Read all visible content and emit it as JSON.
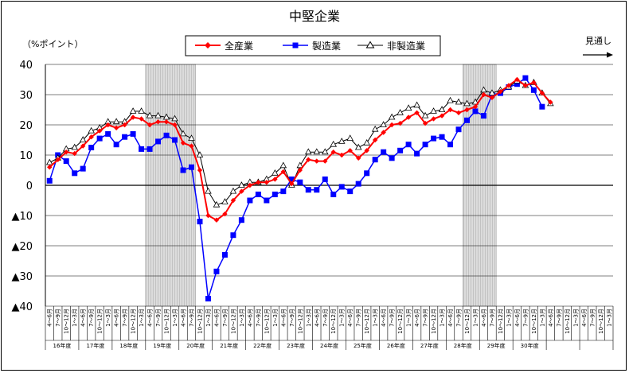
{
  "chart_data": {
    "type": "line",
    "title": "中堅企業",
    "ylabel": "（%ポイント）",
    "forecast_label": "見通し",
    "ylim": [
      -40,
      40
    ],
    "yticks": [
      "40",
      "30",
      "20",
      "10",
      "0",
      "▲10",
      "▲20",
      "▲30",
      "▲40"
    ],
    "grid": "horizontal",
    "legend_position": "top",
    "shaded_periods": [
      [
        24,
        35
      ],
      [
        100,
        107
      ]
    ],
    "x_labels": [
      "4～6月",
      "7～9月",
      "10～12月",
      "1～3月",
      "4～6月",
      "7～9月",
      "10～12月",
      "1～3月",
      "4～6月",
      "7～9月",
      "10～12月",
      "1～3月",
      "4～6月",
      "7～9月",
      "10～12月",
      "1～3月",
      "4～6月",
      "7～9月",
      "10～12月",
      "1～3月",
      "4～6月",
      "7～9月",
      "10～12月",
      "1～3月",
      "4～6月",
      "7～9月",
      "10～12月",
      "1～3月",
      "4～6月",
      "7～9月",
      "10～12月",
      "1～3月",
      "4～6月",
      "7～9月",
      "10～12月",
      "1～3月",
      "4～6月",
      "7～9月",
      "10～12月",
      "1～3月",
      "4～6月",
      "7～9月",
      "10～12月",
      "1～3月",
      "4～6月",
      "7～9月",
      "10～12月",
      "1～3月",
      "4～6月",
      "7～9月",
      "10～12月",
      "1～3月",
      "4～6月",
      "7～9月",
      "10～12月",
      "1～3月",
      "4～6月",
      "7～9月",
      "10～12月",
      "1～3月",
      "4～6月",
      "7～9月",
      "10～12月",
      "1～3月",
      "4～6月",
      "7～9月",
      "10～12月",
      "1～3月"
    ],
    "fiscal_years": [
      "16年度",
      "17年度",
      "18年度",
      "19年度",
      "20年度",
      "21年度",
      "22年度",
      "23年度",
      "24年度",
      "25年度",
      "26年度",
      "27年度",
      "28年度",
      "29年度",
      "30年度"
    ],
    "series": [
      {
        "name": "全産業",
        "color": "#ff0000",
        "marker": "diamond",
        "values": [
          6,
          8.5,
          11,
          10.5,
          13,
          16,
          18,
          20,
          19,
          20,
          22.5,
          22,
          20,
          21,
          21,
          20,
          14,
          13,
          5,
          -10,
          -11.5,
          -9.5,
          -5,
          -2,
          0,
          1,
          1,
          2,
          4.5,
          0.5,
          5,
          8.5,
          8,
          8,
          11,
          10,
          11.5,
          9,
          11.5,
          15,
          17.5,
          20,
          20.5,
          22.5,
          24,
          20.5,
          22,
          23,
          25,
          24,
          25,
          26,
          30,
          29,
          31,
          33,
          35,
          33,
          34,
          30.5,
          27.5
        ]
      },
      {
        "name": "製造業",
        "color": "#0000ff",
        "marker": "square",
        "values": [
          1.5,
          10,
          8,
          4,
          5.5,
          12.5,
          15.5,
          17,
          13.5,
          16,
          17,
          12,
          12,
          14.5,
          16.5,
          15,
          5,
          6,
          -12,
          -37.5,
          -28.5,
          -23,
          -16.5,
          -11.5,
          -5,
          -3,
          -5,
          -3,
          -2,
          2,
          1,
          -1.5,
          -1.5,
          2,
          -3,
          -0.5,
          -2,
          0.5,
          4,
          8.5,
          11,
          9,
          11.5,
          13.5,
          10.5,
          13.5,
          15.5,
          16,
          13.5,
          18.5,
          21.5,
          24.5,
          23,
          30,
          30.5,
          32.5,
          33.5,
          35.5,
          31.5,
          26
        ]
      },
      {
        "name": "非製造業",
        "color": "#000000",
        "marker": "triangle",
        "values": [
          7.5,
          9,
          12,
          12.5,
          15,
          18,
          19,
          21,
          21,
          21,
          24.5,
          24.5,
          23,
          23,
          22.5,
          22,
          17,
          15.5,
          10,
          -2,
          -6.5,
          -5.5,
          -2,
          0,
          1,
          1,
          2,
          4,
          6.5,
          0,
          6.5,
          11,
          11,
          11,
          13.5,
          14.5,
          15.5,
          12.5,
          14,
          18.5,
          20,
          22.5,
          24,
          25.5,
          26.5,
          23,
          24.5,
          25,
          28,
          27.5,
          27,
          27.5,
          31.5,
          30.5,
          31.5,
          32.5,
          34.5,
          33,
          34,
          30.5,
          27
        ]
      }
    ]
  }
}
